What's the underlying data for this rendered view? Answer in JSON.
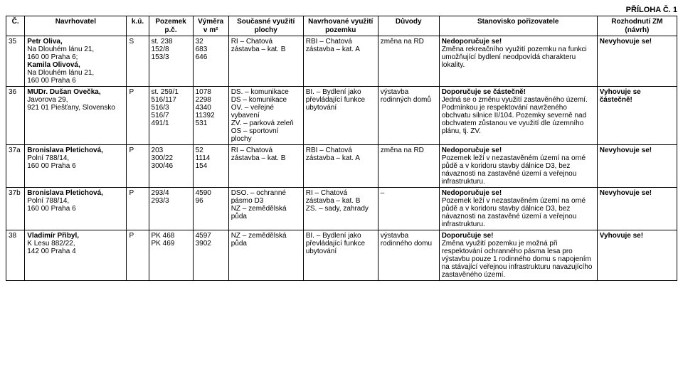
{
  "header_right": "PŘÍLOHA Č. 1",
  "columns": {
    "c": "Č.",
    "nav": "Navrhovatel",
    "ku": "k.ú.",
    "poz_l1": "Pozemek",
    "poz_l2": "p.č.",
    "vym_l1": "Výměra",
    "vym_l2": "v m²",
    "sou_l1": "Současné využití",
    "sou_l2": "plochy",
    "nvy_l1": "Navrhované využití",
    "nvy_l2": "pozemku",
    "duv": "Důvody",
    "stan": "Stanovisko pořizovatele",
    "roz_l1": "Rozhodnutí ZM",
    "roz_l2": "(návrh)"
  },
  "rows": [
    {
      "num": "35",
      "nav_b1": "Petr Oliva,",
      "nav_l2": "Na Dlouhém lánu 21,",
      "nav_l3": "160 00 Praha 6;",
      "nav_b4": "Kamila Olivová,",
      "nav_l5": "Na Dlouhém lánu 21,",
      "nav_l6": "160 00 Praha 6",
      "ku": "S",
      "poz": "st. 238\n152/8\n153/3",
      "vym": "32\n683\n646",
      "sou": "RI – Chatová zástavba – kat. B",
      "nvy": "RBI – Chatová zástavba – kat. A",
      "duv": "změna na RD",
      "stan_b": "Nedoporučuje se!",
      "stan_t": "Změna rekreačního využití pozemku na funkci umožňující bydlení neodpovídá charakteru lokality.",
      "roz": "Nevyhovuje se!"
    },
    {
      "num": "36",
      "nav_b1": "MUDr. Dušan Ovečka,",
      "nav_l2": "Javorova 29,",
      "nav_l3": "921 01 Piešťany, Slovensko",
      "ku": "P",
      "poz": "st. 259/1\n516/117\n516/3\n516/7\n491/1",
      "vym": "1078\n2298\n4340\n11392\n531",
      "sou": "DS. – komunikace\nDS – komunikace\nOV. – veřejné vybavení\nZV. – parková zeleň\nOS – sportovní plochy",
      "nvy": "BI. – Bydlení jako převládající funkce ubytování",
      "duv": "výstavba rodinných domů",
      "stan_b": "Doporučuje se částečně!",
      "stan_t": "Jedná se o změnu využití zastavěného území. Podmínkou je respektování navrženého obchvatu silnice II/104. Pozemky severně nad obchvatem zůstanou ve využití dle územního plánu, tj. ZV.",
      "roz": "Vyhovuje se částečně!"
    },
    {
      "num": "37a",
      "nav_b1": "Bronislava Pletichová,",
      "nav_l2": "Polní 788/14,",
      "nav_l3": "160 00 Praha 6",
      "ku": "P",
      "poz": "203\n300/22\n300/46",
      "vym": "52\n1114\n154",
      "sou": "RI – Chatová zástavba – kat. B",
      "nvy": "RBI – Chatová zástavba – kat. A",
      "duv": "změna na RD",
      "stan_b": "Nedoporučuje se!",
      "stan_t": "Pozemek leží v nezastavěném území na orné půdě a v koridoru stavby dálnice D3, bez návaznosti na zastavěné území a veřejnou infrastrukturu.",
      "roz": "Nevyhovuje se!"
    },
    {
      "num": "37b",
      "nav_b1": "Bronislava Pletichová,",
      "nav_l2": "Polní 788/14,",
      "nav_l3": "160 00 Praha 6",
      "ku": "P",
      "poz": "293/4\n293/3",
      "vym": "4590\n96",
      "sou": "DSO. – ochranné pásmo D3\nNZ – zemědělská půda",
      "nvy": "RI – Chatová zástavba – kat. B\nZS. – sady, zahrady",
      "duv": "–",
      "stan_b": "Nedoporučuje se!",
      "stan_t": "Pozemek leží v nezastavěném území na orné půdě a v koridoru stavby dálnice D3, bez návaznosti na zastavěné území a veřejnou infrastrukturu.",
      "roz": "Nevyhovuje se!"
    },
    {
      "num": "38",
      "nav_b1": "Vladimír Přibyl,",
      "nav_l2": "K Lesu 882/22,",
      "nav_l3": "142 00 Praha 4",
      "ku": "P",
      "poz": "PK 468\nPK 469",
      "vym": "4597\n3902",
      "sou": "NZ – zemědělská půda",
      "nvy": "BI. – Bydlení jako převládající funkce ubytování",
      "duv": "výstavba rodinného domu",
      "stan_b": "Doporučuje se!",
      "stan_t": "Změna využití pozemku je možná při respektování ochranného pásma lesa pro výstavbu pouze 1 rodinného domu s napojením na stávající veřejnou infrastrukturu navazujícího zastavěného území.",
      "roz": "Vyhovuje se!"
    }
  ]
}
